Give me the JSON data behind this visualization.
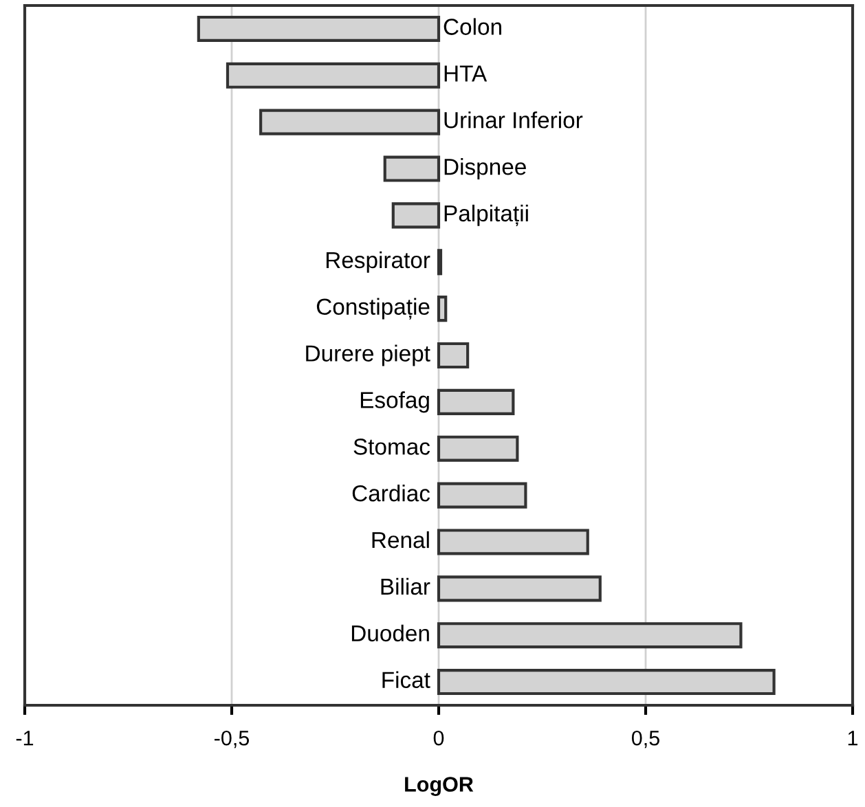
{
  "chart_data": {
    "type": "bar",
    "orientation": "horizontal",
    "xlabel": "LogOR",
    "categories": [
      "Colon",
      "HTA",
      "Urinar Inferior",
      "Dispnee",
      "Palpitații",
      "Respirator",
      "Constipație",
      "Durere piept",
      "Esofag",
      "Stomac",
      "Cardiac",
      "Renal",
      "Biliar",
      "Duoden",
      "Ficat"
    ],
    "values": [
      -0.58,
      -0.51,
      -0.43,
      -0.13,
      -0.11,
      0.005,
      0.017,
      0.07,
      0.18,
      0.19,
      0.21,
      0.36,
      0.39,
      0.73,
      0.81
    ],
    "color": "#d3d3d3",
    "xlim": [
      -1,
      1
    ],
    "xticks": [
      -1,
      {
        "value": -0.5,
        "label": "-0,5"
      },
      0,
      {
        "value": 0.5,
        "label": "0,5"
      },
      1
    ],
    "grid": "x"
  }
}
